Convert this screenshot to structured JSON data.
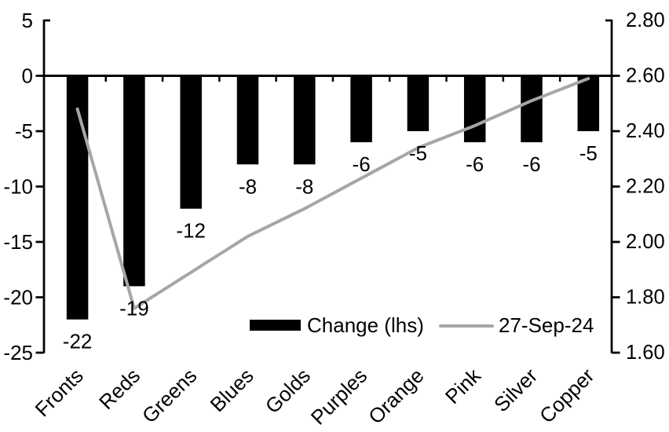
{
  "chart_data": {
    "type": "bar",
    "title": "",
    "categories": [
      "Fronts",
      "Reds",
      "Greens",
      "Blues",
      "Golds",
      "Purples",
      "Orange",
      "Pink",
      "Silver",
      "Copper"
    ],
    "series": [
      {
        "name": "Change (lhs)",
        "type": "bar",
        "axis": "left",
        "color": "#000000",
        "values": [
          -22,
          -19,
          -12,
          -8,
          -8,
          -6,
          -5,
          -6,
          -6,
          -5
        ],
        "labels": [
          "-22",
          "-19",
          "-12",
          "-8",
          "-8",
          "-6",
          "-5",
          "-6",
          "-6",
          "-5"
        ]
      },
      {
        "name": "27-Sep-24",
        "type": "line",
        "axis": "right",
        "color": "#A6A6A6",
        "values": [
          2.48,
          1.76,
          1.89,
          2.02,
          2.12,
          2.23,
          2.34,
          2.42,
          2.51,
          2.59
        ]
      }
    ],
    "left_axis": {
      "min": -25,
      "max": 5,
      "tick_values": [
        5,
        0,
        -5,
        -10,
        -15,
        -20,
        -25
      ],
      "tick_labels": [
        "5",
        "0",
        "-5",
        "-10",
        "-15",
        "-20",
        "-25"
      ]
    },
    "right_axis": {
      "min": 1.6,
      "max": 2.8,
      "tick_values": [
        2.8,
        2.6,
        2.4,
        2.2,
        2.0,
        1.8,
        1.6
      ],
      "tick_labels": [
        "2.80",
        "2.60",
        "2.40",
        "2.20",
        "2.00",
        "1.80",
        "1.60"
      ]
    },
    "legend": [
      {
        "label": "Change (lhs)",
        "marker": "bar-swatch"
      },
      {
        "label": "27-Sep-24",
        "marker": "line-swatch"
      }
    ],
    "grid": false,
    "legend_position": "inside-bottom-center",
    "colors": {
      "bar": "#000000",
      "line": "#A6A6A6",
      "axis": "#000000",
      "background": "#FFFFFF"
    }
  }
}
